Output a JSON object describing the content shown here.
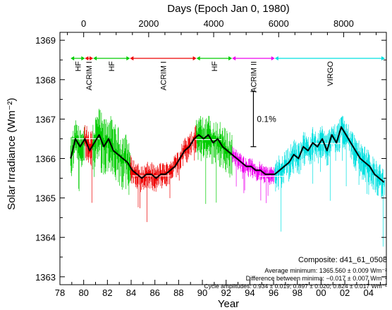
{
  "chart_data": {
    "type": "line",
    "title": "",
    "xlabel": "Year",
    "ylabel": "Solar Irradiance (Wm⁻²)",
    "top_axis_label": "Days (Epoch Jan 0, 1980)",
    "xlim": [
      1978,
      2005.5
    ],
    "ylim": [
      1362.8,
      1369.2
    ],
    "x_ticks": [
      {
        "value": 1978,
        "label": "78"
      },
      {
        "value": 1980,
        "label": "80"
      },
      {
        "value": 1982,
        "label": "82"
      },
      {
        "value": 1984,
        "label": "84"
      },
      {
        "value": 1986,
        "label": "86"
      },
      {
        "value": 1988,
        "label": "88"
      },
      {
        "value": 1990,
        "label": "90"
      },
      {
        "value": 1992,
        "label": "92"
      },
      {
        "value": 1994,
        "label": "94"
      },
      {
        "value": 1996,
        "label": "96"
      },
      {
        "value": 1998,
        "label": "98"
      },
      {
        "value": 2000,
        "label": "00"
      },
      {
        "value": 2002,
        "label": "02"
      },
      {
        "value": 2004,
        "label": "04"
      }
    ],
    "top_ticks": [
      {
        "value": 0,
        "label": "0"
      },
      {
        "value": 2000,
        "label": "2000"
      },
      {
        "value": 4000,
        "label": "4000"
      },
      {
        "value": 6000,
        "label": "6000"
      },
      {
        "value": 8000,
        "label": "8000"
      }
    ],
    "y_ticks": [
      1363,
      1364,
      1365,
      1366,
      1367,
      1368,
      1369
    ],
    "instrument_bands": [
      {
        "label": "HF",
        "from": 1978.9,
        "to": 1980.1,
        "color": "#00cc00"
      },
      {
        "label": "ACRIM I",
        "from": 1980.1,
        "to": 1980.8,
        "color": "#ee0000"
      },
      {
        "label": "HF",
        "from": 1980.8,
        "to": 1983.9,
        "color": "#00cc00"
      },
      {
        "label": "ACRIM I",
        "from": 1983.9,
        "to": 1989.5,
        "color": "#ee0000"
      },
      {
        "label": "HF",
        "from": 1989.5,
        "to": 1992.5,
        "color": "#00cc00"
      },
      {
        "label": "ACRIM II",
        "from": 1992.5,
        "to": 1996.1,
        "color": "#ee00ee"
      },
      {
        "label": "VIRGO",
        "from": 1996.1,
        "to": 2005.5,
        "color": "#00e0e0"
      }
    ],
    "series": [
      {
        "name": "",
        "color": "#000000",
        "x": [
          1978.9,
          1979.3,
          1979.7,
          1980.1,
          1980.5,
          1980.9,
          1981.3,
          1981.7,
          1982.1,
          1982.5,
          1982.9,
          1983.3,
          1983.7,
          1984.1,
          1984.5,
          1984.9,
          1985.3,
          1985.7,
          1986.1,
          1986.5,
          1986.9,
          1987.3,
          1987.7,
          1988.1,
          1988.5,
          1988.9,
          1989.3,
          1989.7,
          1990.1,
          1990.5,
          1990.9,
          1991.3,
          1991.7,
          1992.1,
          1992.5,
          1992.9,
          1993.3,
          1993.7,
          1994.1,
          1994.5,
          1994.9,
          1995.3,
          1995.7,
          1996.1,
          1996.5,
          1996.9,
          1997.3,
          1997.7,
          1998.1,
          1998.5,
          1998.9,
          1999.3,
          1999.7,
          2000.1,
          2000.5,
          2000.9,
          2001.3,
          2001.7,
          2002.1,
          2002.5,
          2002.9,
          2003.3,
          2003.7,
          2004.1,
          2004.5,
          2004.9,
          2005.3
        ],
        "y": [
          1366.0,
          1366.5,
          1366.3,
          1366.5,
          1366.2,
          1366.4,
          1366.6,
          1366.3,
          1366.5,
          1366.2,
          1366.1,
          1366.0,
          1365.9,
          1365.7,
          1365.6,
          1365.5,
          1365.6,
          1365.6,
          1365.5,
          1365.6,
          1365.6,
          1365.7,
          1365.8,
          1366.0,
          1366.2,
          1366.3,
          1366.5,
          1366.6,
          1366.5,
          1366.6,
          1366.4,
          1366.5,
          1366.3,
          1366.2,
          1366.1,
          1366.0,
          1365.9,
          1365.8,
          1365.8,
          1365.7,
          1365.7,
          1365.6,
          1365.6,
          1365.6,
          1365.7,
          1365.8,
          1365.9,
          1366.1,
          1366.0,
          1366.3,
          1366.2,
          1366.4,
          1366.3,
          1366.5,
          1366.2,
          1366.6,
          1366.4,
          1366.8,
          1366.6,
          1366.4,
          1366.2,
          1366.0,
          1365.9,
          1365.8,
          1365.6,
          1365.5,
          1365.4
        ]
      }
    ],
    "cycle_levels": [
      {
        "from": 1979.0,
        "to": 1981.5,
        "y": 1366.5
      },
      {
        "from": 1984.1,
        "to": 1987.3,
        "y": 1365.56
      },
      {
        "from": 1989.4,
        "to": 1991.6,
        "y": 1366.48
      },
      {
        "from": 1994.8,
        "to": 1997.0,
        "y": 1365.55
      },
      {
        "from": 1999.1,
        "to": 2001.7,
        "y": 1366.38
      }
    ],
    "scale_bar": {
      "label": "0.1%",
      "y_from": 1366.3,
      "y_to": 1367.7,
      "x": 1994.3
    },
    "annotations": {
      "composite": "Composite: d41_61_0508",
      "avg_min": "Average minimum:  1365.560 ± 0.009 Wm⁻²",
      "diff_min": "Difference between minima: −0.017 ± 0.007 Wm⁻²",
      "cycle_amp": "Cycle amplitudes:  0.934 ± 0.019; 0.897 ± 0.020; 0.824 ± 0.017 Wm⁻²"
    }
  }
}
